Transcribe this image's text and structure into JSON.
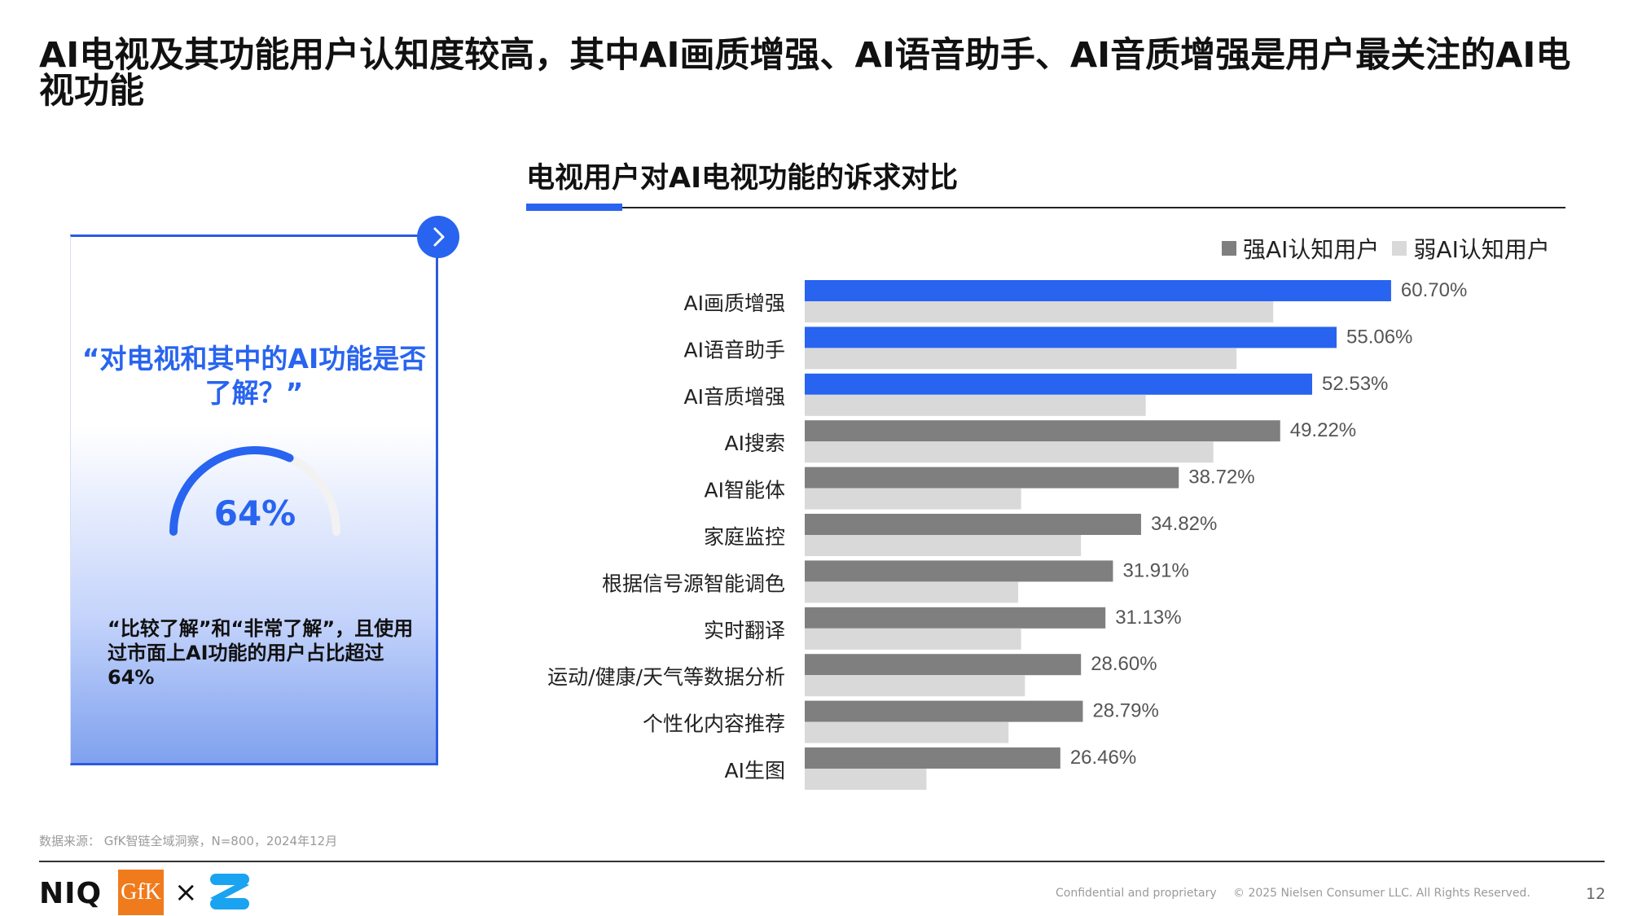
{
  "page": {
    "title": "AI电视及其功能用户认知度较高，其中AI画质增强、AI语音助手、AI音质增强是用户最关注的AI电视功能"
  },
  "card": {
    "question": "“对电视和其中的AI功能是否了解？”",
    "percent_label": "64%",
    "gauge_fraction": 0.64,
    "note": "“比较了解”和“非常了解”，且使用过市面上AI功能的用户占比超过64%"
  },
  "colors": {
    "highlight": "#2864f0",
    "strong": "#7f7f7f",
    "weak": "#d9d9d9"
  },
  "chart_data": {
    "type": "bar",
    "orientation": "horizontal",
    "title": "电视用户对AI电视功能的诉求对比",
    "legend": {
      "position": "top-right",
      "items": [
        "强AI认知用户",
        "弱AI认知用户"
      ]
    },
    "categories": [
      "AI画质增强",
      "AI语音助手",
      "AI音质增强",
      "AI搜索",
      "AI智能体",
      "家庭监控",
      "根据信号源智能调色",
      "实时翻译",
      "运动/健康/天气等数据分析",
      "个性化内容推荐",
      "AI生图"
    ],
    "series": [
      {
        "name": "强AI认知用户",
        "values": [
          60.7,
          55.06,
          52.53,
          49.22,
          38.72,
          34.82,
          31.91,
          31.13,
          28.6,
          28.79,
          26.46
        ],
        "labels": [
          "60.70%",
          "55.06%",
          "52.53%",
          "49.22%",
          "38.72%",
          "34.82%",
          "31.91%",
          "31.13%",
          "28.60%",
          "28.79%",
          "26.46%"
        ],
        "highlight_top": 3
      },
      {
        "name": "弱AI认知用户",
        "values": [
          48.5,
          44.7,
          35.3,
          42.3,
          22.4,
          28.6,
          22.1,
          22.4,
          22.8,
          21.1,
          12.6
        ]
      }
    ],
    "xlim": [
      0,
      70
    ],
    "grid": false
  },
  "footer": {
    "source": "数据来源： GfK智链全域洞察，N=800，2024年12月",
    "logo_niq": "NIQ",
    "logo_gfk": "GfK",
    "confidential": "Confidential and proprietary",
    "copyright": "© 2025 Nielsen Consumer LLC. All Rights Reserved.",
    "page_number": "12"
  }
}
